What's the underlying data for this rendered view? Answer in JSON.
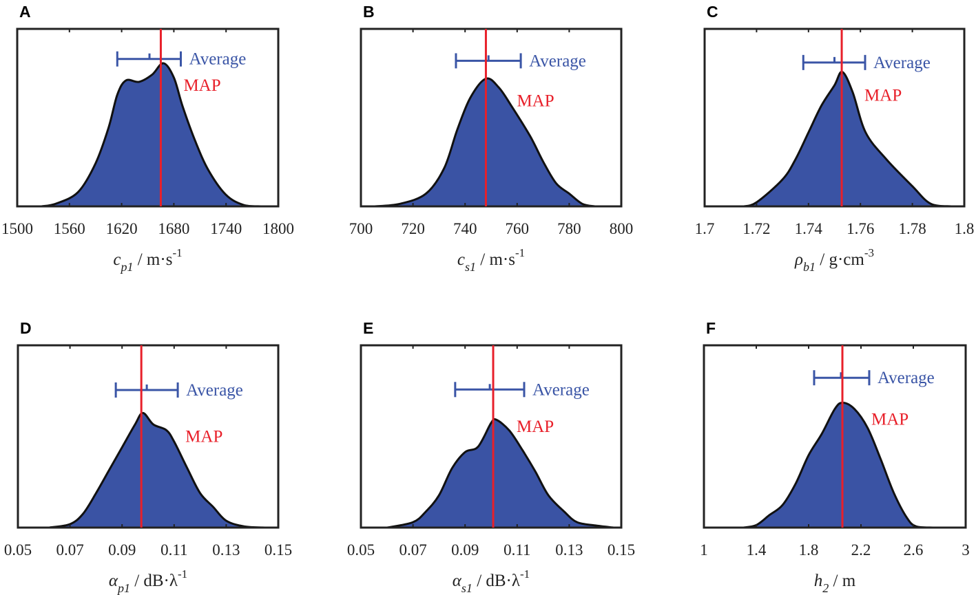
{
  "chart_data": [
    {
      "panel": "A",
      "type": "area",
      "xlim": [
        1500,
        1800
      ],
      "xticks": [
        "1500",
        "1560",
        "1620",
        "1680",
        "1740",
        "1800"
      ],
      "tick_values": [
        1500,
        1560,
        1620,
        1680,
        1740,
        1800
      ],
      "xlabel": {
        "sym": "c",
        "sub": "p1",
        "unit": " / m·s",
        "sup": "-1"
      },
      "ylim": [
        0,
        1.24
      ],
      "x": [
        1528,
        1545,
        1570,
        1590,
        1605,
        1615,
        1625,
        1640,
        1655,
        1668,
        1680,
        1690,
        1705,
        1720,
        1740,
        1760,
        1780
      ],
      "y": [
        0,
        0.02,
        0.1,
        0.3,
        0.55,
        0.78,
        0.88,
        0.87,
        0.92,
        1.0,
        0.9,
        0.7,
        0.45,
        0.25,
        0.08,
        0.01,
        0
      ],
      "map": 1665,
      "average": {
        "mean": 1652,
        "low": 1615,
        "high": 1688,
        "level": 1.03
      },
      "avg_label": "Average",
      "map_label": "MAP"
    },
    {
      "panel": "B",
      "type": "area",
      "xlim": [
        700,
        800
      ],
      "xticks": [
        "700",
        "720",
        "740",
        "760",
        "780",
        "800"
      ],
      "tick_values": [
        700,
        720,
        740,
        760,
        780,
        800
      ],
      "xlabel": {
        "sym": "c",
        "sub": "s1",
        "unit": " / m·s",
        "sup": "-1"
      },
      "ylim": [
        0,
        1.39
      ],
      "x": [
        705,
        715,
        725,
        732,
        737,
        742,
        748,
        753,
        758,
        765,
        770,
        775,
        780,
        785,
        790
      ],
      "y": [
        0,
        0.02,
        0.1,
        0.3,
        0.6,
        0.85,
        1.0,
        0.93,
        0.78,
        0.55,
        0.35,
        0.18,
        0.1,
        0.02,
        0
      ],
      "map": 748,
      "average": {
        "mean": 749,
        "low": 736.5,
        "high": 761.4,
        "level": 1.14
      },
      "avg_label": "Average",
      "map_label": "MAP"
    },
    {
      "panel": "C",
      "type": "area",
      "xlim": [
        1.7,
        1.8
      ],
      "xticks": [
        "1.7",
        "1.72",
        "1.74",
        "1.76",
        "1.78",
        "1.8"
      ],
      "tick_values": [
        1.7,
        1.72,
        1.74,
        1.76,
        1.78,
        1.8
      ],
      "xlabel": {
        "sym": "ρ",
        "sub": "b1",
        "unit": " / g·cm",
        "sup": "-3"
      },
      "ylim": [
        0,
        1.32
      ],
      "x": [
        1.715,
        1.72,
        1.73,
        1.735,
        1.74,
        1.745,
        1.75,
        1.753,
        1.757,
        1.762,
        1.77,
        1.78,
        1.787,
        1.795
      ],
      "y": [
        0,
        0.03,
        0.2,
        0.35,
        0.55,
        0.75,
        0.9,
        1.0,
        0.85,
        0.55,
        0.35,
        0.15,
        0.02,
        0
      ],
      "map": 1.7528,
      "average": {
        "mean": 1.75,
        "low": 1.738,
        "high": 1.7618,
        "level": 1.07
      },
      "avg_label": "Average",
      "map_label": "MAP"
    },
    {
      "panel": "D",
      "type": "area",
      "xlim": [
        0.05,
        0.15
      ],
      "xticks": [
        "0.05",
        "0.07",
        "0.09",
        "0.11",
        "0.13",
        "0.15"
      ],
      "tick_values": [
        0.05,
        0.07,
        0.09,
        0.11,
        0.13,
        0.15
      ],
      "xlabel": {
        "sym": "α",
        "sub": "p1",
        "unit": " / dB·λ",
        "sup": "-1"
      },
      "ylim": [
        0,
        1.59
      ],
      "x": [
        0.062,
        0.07,
        0.075,
        0.08,
        0.085,
        0.09,
        0.095,
        0.098,
        0.102,
        0.107,
        0.11,
        0.115,
        0.12,
        0.125,
        0.13,
        0.137,
        0.145
      ],
      "y": [
        0,
        0.03,
        0.12,
        0.3,
        0.5,
        0.7,
        0.9,
        1.0,
        0.9,
        0.85,
        0.75,
        0.52,
        0.3,
        0.18,
        0.06,
        0.01,
        0
      ],
      "map": 0.0974,
      "average": {
        "mean": 0.0995,
        "low": 0.0876,
        "high": 0.1114,
        "level": 1.2
      },
      "avg_label": "Average",
      "map_label": "MAP"
    },
    {
      "panel": "E",
      "type": "area",
      "xlim": [
        0.05,
        0.15
      ],
      "xticks": [
        "0.05",
        "0.07",
        "0.09",
        "0.11",
        "0.13",
        "0.15"
      ],
      "tick_values": [
        0.05,
        0.07,
        0.09,
        0.11,
        0.13,
        0.15
      ],
      "xlabel": {
        "sym": "α",
        "sub": "s1",
        "unit": " / dB·λ",
        "sup": "-1"
      },
      "ylim": [
        0,
        1.69
      ],
      "x": [
        0.06,
        0.07,
        0.075,
        0.08,
        0.085,
        0.09,
        0.095,
        0.1,
        0.102,
        0.107,
        0.112,
        0.117,
        0.122,
        0.128,
        0.133,
        0.14,
        0.147
      ],
      "y": [
        0,
        0.05,
        0.15,
        0.3,
        0.55,
        0.7,
        0.75,
        0.97,
        1.0,
        0.9,
        0.72,
        0.52,
        0.3,
        0.15,
        0.05,
        0.02,
        0
      ],
      "map": 0.1008,
      "average": {
        "mean": 0.0995,
        "low": 0.0862,
        "high": 0.1127,
        "level": 1.28
      },
      "avg_label": "Average",
      "map_label": "MAP"
    },
    {
      "panel": "F",
      "type": "area",
      "xlim": [
        1,
        3
      ],
      "xticks": [
        "1",
        "1.4",
        "1.8",
        "2.2",
        "2.6",
        "3"
      ],
      "tick_values": [
        1,
        1.4,
        1.8,
        2.2,
        2.6,
        3
      ],
      "xlabel": {
        "sym": "h",
        "sub": "2",
        "unit": " / m",
        "sup": ""
      },
      "ylim": [
        0,
        1.46
      ],
      "x": [
        1.3,
        1.4,
        1.5,
        1.6,
        1.7,
        1.8,
        1.9,
        2.0,
        2.06,
        2.15,
        2.25,
        2.35,
        2.45,
        2.55,
        2.62,
        2.75
      ],
      "y": [
        0,
        0.02,
        0.1,
        0.18,
        0.35,
        0.58,
        0.75,
        0.95,
        1.0,
        0.95,
        0.8,
        0.55,
        0.28,
        0.08,
        0.01,
        0
      ],
      "map": 2.058,
      "average": {
        "mean": 2.047,
        "low": 1.842,
        "high": 2.263,
        "level": 1.2
      },
      "avg_label": "Average",
      "map_label": "MAP"
    }
  ],
  "colors": {
    "fill": "#3a53a4",
    "map": "#e8202a",
    "average": "#3a55a6",
    "outline": "#111111"
  }
}
